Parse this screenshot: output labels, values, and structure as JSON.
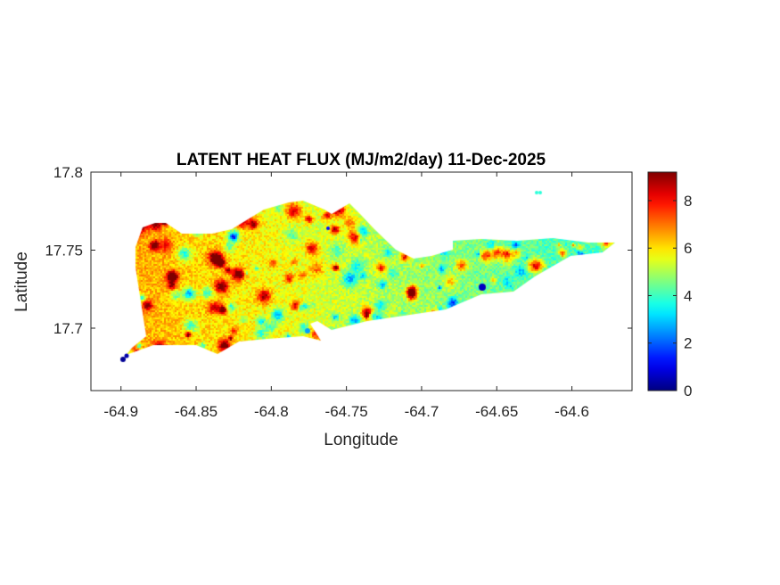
{
  "chart_data": {
    "type": "heatmap",
    "title": "LATENT HEAT FLUX (MJ/m2/day) 11-Dec-2025",
    "xlabel": "Longitude",
    "ylabel": "Latitude",
    "xlim": [
      -64.92,
      -64.56
    ],
    "ylim": [
      17.66,
      17.8
    ],
    "xticks": [
      -64.9,
      -64.85,
      -64.8,
      -64.75,
      -64.7,
      -64.65,
      -64.6
    ],
    "xtick_labels": [
      "-64.9",
      "-64.85",
      "-64.8",
      "-64.75",
      "-64.7",
      "-64.65",
      "-64.6"
    ],
    "yticks": [
      17.7,
      17.75,
      17.8
    ],
    "ytick_labels": [
      "17.7",
      "17.75",
      "17.8"
    ],
    "colorbar": {
      "colormap": "jet",
      "clim": [
        0,
        9.2
      ],
      "ticks": [
        0,
        2,
        4,
        6,
        8
      ],
      "tick_labels": [
        "0",
        "2",
        "4",
        "6",
        "8"
      ],
      "location": "right"
    },
    "grid": false,
    "field_summary": {
      "west_typical": 6.5,
      "central_typical": 5,
      "east_typical": 4,
      "min": 0,
      "max": 9.2
    }
  }
}
